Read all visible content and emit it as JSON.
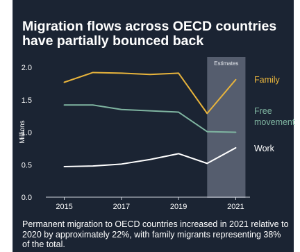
{
  "chart_data": {
    "type": "line",
    "title": "Migration flows across OECD countries have partially bounced back",
    "ylabel": "Millions",
    "xlabel": "",
    "ylim": [
      0,
      2.0
    ],
    "yticks": [
      "0.0",
      "0.5",
      "1.0",
      "1.5",
      "2.0"
    ],
    "xlim": [
      2014.5,
      2021.5
    ],
    "xticks": [
      "2015",
      "2017",
      "2019",
      "2021"
    ],
    "grid": false,
    "shaded_region": {
      "label": "Estimates",
      "x_from": 2020,
      "x_to": 2021
    },
    "x": [
      2015,
      2016,
      2017,
      2018,
      2019,
      2020,
      2021
    ],
    "series": [
      {
        "name": "Family",
        "label_lines": [
          "Family"
        ],
        "color": "#e8b43c",
        "values": [
          1.77,
          1.92,
          1.91,
          1.89,
          1.91,
          1.29,
          1.81
        ]
      },
      {
        "name": "Free movement",
        "label_lines": [
          "Free",
          "movement"
        ],
        "color": "#7fb5a1",
        "values": [
          1.42,
          1.42,
          1.35,
          1.33,
          1.31,
          1.01,
          1.0
        ]
      },
      {
        "name": "Work",
        "label_lines": [
          "Work"
        ],
        "color": "#ffffff",
        "values": [
          0.47,
          0.48,
          0.51,
          0.58,
          0.67,
          0.52,
          0.76
        ]
      }
    ],
    "footnote": "Permanent migration to OECD countries increased in 2021 relative to 2020 by approximately 22%, with family migrants representing 38% of the total."
  },
  "colors": {
    "background": "#1b2433",
    "shade": "#5c6474",
    "axis": "#cfd4dc",
    "text": "#ffffff"
  }
}
